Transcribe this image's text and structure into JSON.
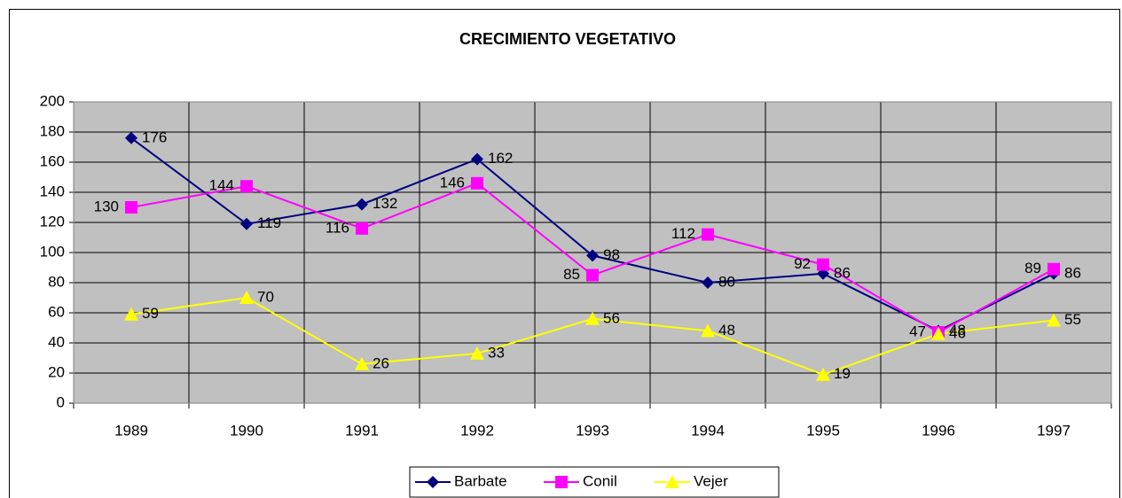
{
  "chart_data": {
    "type": "line",
    "title": "CRECIMIENTO VEGETATIVO",
    "categories": [
      "1989",
      "1990",
      "1991",
      "1992",
      "1993",
      "1994",
      "1995",
      "1996",
      "1997"
    ],
    "series": [
      {
        "name": "Barbate",
        "color": "#000080",
        "marker": "diamond",
        "values": [
          176,
          119,
          132,
          162,
          98,
          80,
          86,
          48,
          86
        ]
      },
      {
        "name": "Conil",
        "color": "#ff00ff",
        "marker": "square",
        "values": [
          130,
          144,
          116,
          146,
          85,
          112,
          92,
          47,
          89
        ]
      },
      {
        "name": "Vejer",
        "color": "#ffff00",
        "marker": "triangle",
        "values": [
          59,
          70,
          26,
          33,
          56,
          48,
          19,
          46,
          55
        ]
      }
    ],
    "ylim": [
      0,
      200
    ],
    "yticks": [
      0,
      20,
      40,
      60,
      80,
      100,
      120,
      140,
      160,
      180,
      200
    ],
    "grid": true,
    "legend": "bottom"
  }
}
